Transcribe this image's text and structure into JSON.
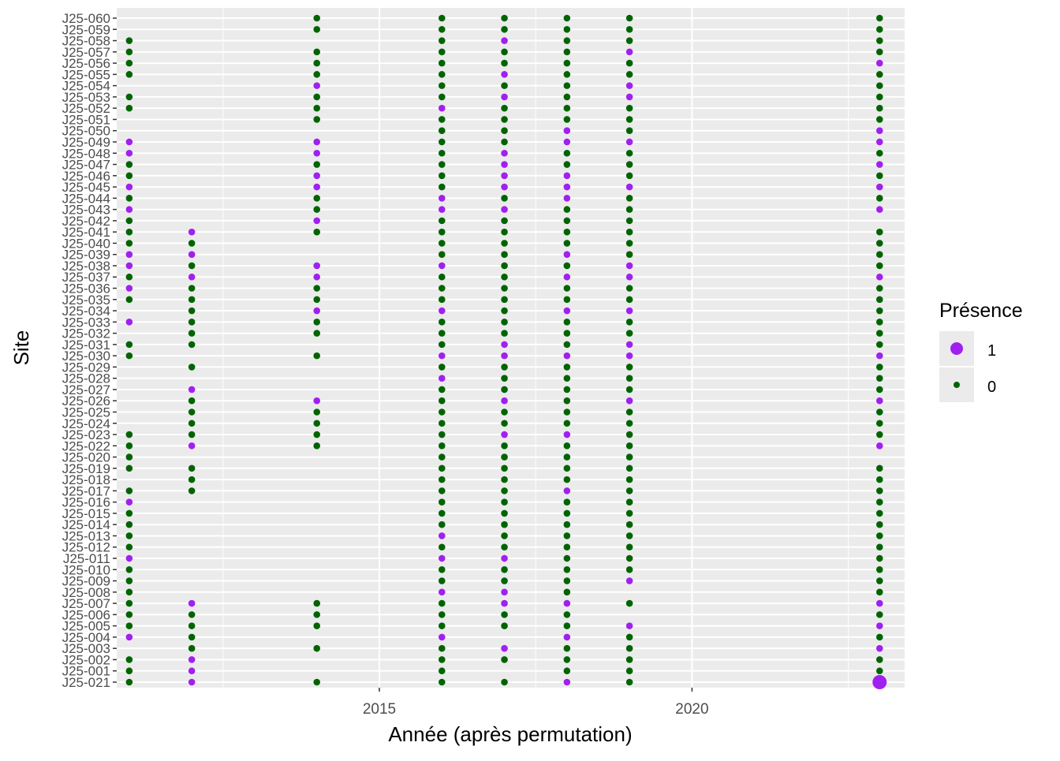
{
  "chart_data": {
    "type": "scatter",
    "title": "",
    "xlabel": "Année (après permutation)",
    "ylabel": "Site",
    "xlim": [
      2010.8,
      2023.4
    ],
    "x_ticks": [
      2015,
      2020
    ],
    "grid": true,
    "legend_position": "right",
    "legend": {
      "title": "Présence",
      "entries": [
        {
          "label": "1",
          "value": 1,
          "color": "#A020F0"
        },
        {
          "label": "0",
          "value": 0,
          "color": "#006400"
        }
      ]
    },
    "colors": {
      "present": "#A020F0",
      "absent": "#006400",
      "panel": "#EBEBEB",
      "grid": "#FFFFFF"
    },
    "sites": [
      "J25-021",
      "J25-001",
      "J25-002",
      "J25-003",
      "J25-004",
      "J25-005",
      "J25-006",
      "J25-007",
      "J25-008",
      "J25-009",
      "J25-010",
      "J25-011",
      "J25-012",
      "J25-013",
      "J25-014",
      "J25-015",
      "J25-016",
      "J25-017",
      "J25-018",
      "J25-019",
      "J25-020",
      "J25-022",
      "J25-023",
      "J25-024",
      "J25-025",
      "J25-026",
      "J25-027",
      "J25-028",
      "J25-029",
      "J25-030",
      "J25-031",
      "J25-032",
      "J25-033",
      "J25-034",
      "J25-035",
      "J25-036",
      "J25-037",
      "J25-038",
      "J25-039",
      "J25-040",
      "J25-041",
      "J25-042",
      "J25-043",
      "J25-044",
      "J25-045",
      "J25-046",
      "J25-047",
      "J25-048",
      "J25-049",
      "J25-050",
      "J25-051",
      "J25-052",
      "J25-053",
      "J25-054",
      "J25-055",
      "J25-056",
      "J25-057",
      "J25-058",
      "J25-059",
      "J25-060"
    ],
    "years": [
      2011,
      2012,
      2014,
      2016,
      2017,
      2018,
      2019,
      2023
    ],
    "matrix_note": "rows follow sites order; columns follow years order; 1 = present, 0 = absent, null = no observation",
    "presence": [
      [
        0,
        1,
        0,
        0,
        0,
        1,
        0,
        1
      ],
      [
        0,
        1,
        null,
        0,
        null,
        0,
        0,
        0
      ],
      [
        0,
        1,
        null,
        0,
        0,
        0,
        0,
        0
      ],
      [
        null,
        0,
        0,
        0,
        1,
        0,
        0,
        1
      ],
      [
        1,
        0,
        null,
        1,
        null,
        1,
        0,
        0
      ],
      [
        0,
        0,
        0,
        0,
        0,
        0,
        1,
        1
      ],
      [
        0,
        0,
        0,
        0,
        0,
        0,
        null,
        0
      ],
      [
        0,
        1,
        0,
        0,
        1,
        1,
        0,
        1
      ],
      [
        0,
        null,
        null,
        1,
        1,
        0,
        null,
        0
      ],
      [
        0,
        null,
        null,
        0,
        0,
        0,
        1,
        0
      ],
      [
        0,
        null,
        null,
        0,
        0,
        0,
        0,
        0
      ],
      [
        1,
        null,
        null,
        1,
        1,
        0,
        0,
        0
      ],
      [
        0,
        null,
        null,
        0,
        0,
        0,
        0,
        0
      ],
      [
        0,
        null,
        null,
        1,
        0,
        0,
        0,
        0
      ],
      [
        0,
        null,
        null,
        0,
        0,
        0,
        0,
        0
      ],
      [
        0,
        null,
        null,
        0,
        0,
        0,
        0,
        0
      ],
      [
        1,
        null,
        null,
        0,
        0,
        0,
        0,
        0
      ],
      [
        0,
        0,
        null,
        0,
        0,
        1,
        0,
        0
      ],
      [
        null,
        0,
        null,
        0,
        0,
        0,
        0,
        0
      ],
      [
        0,
        0,
        null,
        0,
        0,
        0,
        0,
        0
      ],
      [
        0,
        null,
        null,
        0,
        0,
        0,
        0,
        null
      ],
      [
        0,
        1,
        0,
        0,
        0,
        0,
        0,
        1
      ],
      [
        0,
        0,
        0,
        0,
        1,
        1,
        0,
        0
      ],
      [
        null,
        0,
        0,
        0,
        0,
        0,
        0,
        0
      ],
      [
        null,
        0,
        0,
        0,
        0,
        0,
        0,
        0
      ],
      [
        null,
        0,
        1,
        0,
        1,
        0,
        1,
        1
      ],
      [
        null,
        1,
        null,
        0,
        0,
        0,
        0,
        0
      ],
      [
        null,
        null,
        null,
        1,
        0,
        0,
        0,
        0
      ],
      [
        null,
        0,
        null,
        0,
        0,
        0,
        0,
        0
      ],
      [
        0,
        null,
        0,
        1,
        1,
        1,
        1,
        1
      ],
      [
        0,
        0,
        null,
        0,
        1,
        0,
        1,
        0
      ],
      [
        null,
        0,
        0,
        0,
        0,
        0,
        0,
        0
      ],
      [
        1,
        0,
        0,
        0,
        0,
        0,
        0,
        0
      ],
      [
        null,
        0,
        1,
        1,
        0,
        1,
        1,
        0
      ],
      [
        0,
        0,
        0,
        0,
        0,
        0,
        0,
        0
      ],
      [
        1,
        0,
        0,
        0,
        0,
        0,
        0,
        0
      ],
      [
        0,
        1,
        1,
        0,
        0,
        1,
        1,
        1
      ],
      [
        1,
        0,
        1,
        1,
        0,
        0,
        1,
        0
      ],
      [
        1,
        1,
        null,
        0,
        0,
        1,
        0,
        0
      ],
      [
        0,
        0,
        null,
        0,
        0,
        0,
        0,
        0
      ],
      [
        0,
        1,
        0,
        0,
        0,
        0,
        0,
        0
      ],
      [
        0,
        null,
        1,
        0,
        0,
        0,
        0,
        null
      ],
      [
        1,
        null,
        0,
        1,
        1,
        0,
        0,
        1
      ],
      [
        0,
        null,
        0,
        1,
        0,
        1,
        0,
        0
      ],
      [
        1,
        null,
        1,
        0,
        1,
        1,
        1,
        1
      ],
      [
        0,
        null,
        1,
        0,
        1,
        1,
        0,
        0
      ],
      [
        0,
        null,
        0,
        0,
        1,
        0,
        0,
        1
      ],
      [
        1,
        null,
        1,
        0,
        1,
        0,
        0,
        0
      ],
      [
        1,
        null,
        1,
        0,
        0,
        1,
        1,
        1
      ],
      [
        null,
        null,
        null,
        0,
        0,
        1,
        0,
        1
      ],
      [
        null,
        null,
        0,
        0,
        0,
        0,
        0,
        0
      ],
      [
        0,
        null,
        0,
        1,
        0,
        0,
        0,
        0
      ],
      [
        0,
        null,
        0,
        0,
        1,
        0,
        1,
        0
      ],
      [
        null,
        null,
        1,
        0,
        0,
        0,
        1,
        0
      ],
      [
        0,
        null,
        0,
        0,
        1,
        0,
        0,
        0
      ],
      [
        0,
        null,
        0,
        0,
        0,
        0,
        0,
        1
      ],
      [
        0,
        null,
        0,
        0,
        0,
        0,
        1,
        0
      ],
      [
        0,
        null,
        null,
        0,
        1,
        0,
        0,
        0
      ],
      [
        null,
        null,
        0,
        0,
        0,
        0,
        0,
        0
      ],
      [
        null,
        null,
        0,
        0,
        0,
        0,
        0,
        0
      ]
    ]
  }
}
